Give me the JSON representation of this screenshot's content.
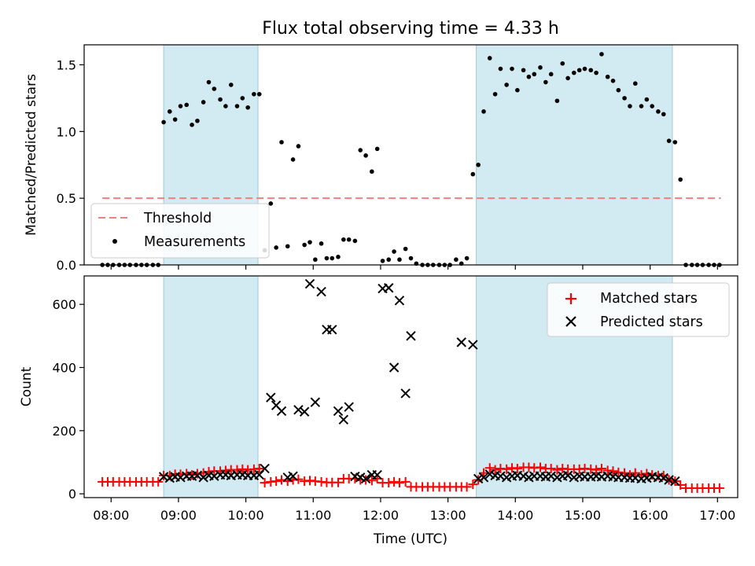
{
  "chart_data": {
    "title": "Flux total observing time = 4.33 h",
    "xlabel": "Time (UTC)",
    "xlim": [
      7.6,
      17.3
    ],
    "x_ticks": [
      8,
      9,
      10,
      11,
      12,
      13,
      14,
      15,
      16,
      17
    ],
    "x_tick_labels": [
      "08:00",
      "09:00",
      "10:00",
      "11:00",
      "12:00",
      "13:00",
      "14:00",
      "15:00",
      "16:00",
      "17:00"
    ],
    "observing_intervals": [
      [
        8.78,
        10.18
      ],
      [
        13.42,
        16.33
      ]
    ],
    "band_color": "#add8e6",
    "panels": [
      {
        "type": "scatter",
        "ylabel": "Matched/Predicted stars",
        "ylim": [
          0,
          1.65
        ],
        "y_ticks": [
          0.0,
          0.5,
          1.0,
          1.5
        ],
        "y_tick_labels": [
          "0.0",
          "0.5",
          "1.0",
          "1.5"
        ],
        "legend_position": "lower-left",
        "threshold": {
          "name": "Threshold",
          "value": 0.5,
          "x_range": [
            7.87,
            17.05
          ],
          "color": "#f08080"
        },
        "measurements": {
          "name": "Measurements",
          "color": "#000000",
          "x": [
            7.87,
            7.95,
            8.03,
            8.12,
            8.2,
            8.28,
            8.37,
            8.45,
            8.53,
            8.62,
            8.7,
            8.78,
            8.87,
            8.95,
            9.03,
            9.12,
            9.2,
            9.28,
            9.37,
            9.45,
            9.53,
            9.62,
            9.7,
            9.78,
            9.87,
            9.95,
            10.03,
            10.12,
            10.2,
            10.28,
            10.37,
            10.45,
            10.53,
            10.62,
            10.7,
            10.78,
            10.87,
            10.95,
            11.03,
            11.12,
            11.2,
            11.28,
            11.37,
            11.45,
            11.53,
            11.62,
            11.7,
            11.78,
            11.87,
            11.95,
            12.03,
            12.12,
            12.2,
            12.28,
            12.37,
            12.45,
            12.53,
            12.62,
            12.7,
            12.78,
            12.87,
            12.95,
            13.03,
            13.12,
            13.2,
            13.28,
            13.37,
            13.45,
            13.53,
            13.62,
            13.7,
            13.78,
            13.87,
            13.95,
            14.03,
            14.12,
            14.2,
            14.28,
            14.37,
            14.45,
            14.53,
            14.62,
            14.7,
            14.78,
            14.87,
            14.95,
            15.03,
            15.12,
            15.2,
            15.28,
            15.37,
            15.45,
            15.53,
            15.62,
            15.7,
            15.78,
            15.87,
            15.95,
            16.03,
            16.12,
            16.2,
            16.28,
            16.37,
            16.45,
            16.53,
            16.62,
            16.7,
            16.78,
            16.87,
            16.95,
            17.03
          ],
          "y": [
            0,
            0,
            0,
            0,
            0,
            0,
            0,
            0,
            0,
            0,
            0,
            1.07,
            1.15,
            1.09,
            1.19,
            1.2,
            1.05,
            1.08,
            1.22,
            1.37,
            1.32,
            1.24,
            1.19,
            1.35,
            1.19,
            1.25,
            1.18,
            1.28,
            1.28,
            0.11,
            0.46,
            0.13,
            0.92,
            0.14,
            0.79,
            0.89,
            0.15,
            0.17,
            0.04,
            0.16,
            0.05,
            0.05,
            0.06,
            0.19,
            0.19,
            0.18,
            0.86,
            0.82,
            0.7,
            0.87,
            0.03,
            0.04,
            0.1,
            0.04,
            0.12,
            0.05,
            0.01,
            0,
            0,
            0,
            0,
            0,
            0,
            0.04,
            0.01,
            0.05,
            0.68,
            0.75,
            1.15,
            1.55,
            1.28,
            1.47,
            1.35,
            1.47,
            1.31,
            1.46,
            1.41,
            1.43,
            1.48,
            1.37,
            1.43,
            1.23,
            1.51,
            1.4,
            1.44,
            1.46,
            1.47,
            1.46,
            1.44,
            1.58,
            1.41,
            1.38,
            1.31,
            1.25,
            1.19,
            1.36,
            1.19,
            1.24,
            1.19,
            1.15,
            1.13,
            0.93,
            0.92,
            0.64,
            0,
            0,
            0,
            0,
            0,
            0,
            0
          ]
        }
      },
      {
        "type": "scatter",
        "ylabel": "Count",
        "ylim": [
          -12,
          690
        ],
        "y_ticks": [
          0,
          200,
          400,
          600
        ],
        "y_tick_labels": [
          "0",
          "200",
          "400",
          "600"
        ],
        "legend_position": "upper-right",
        "matched": {
          "name": "Matched stars",
          "color": "#ff0000",
          "x": [
            7.87,
            7.95,
            8.03,
            8.12,
            8.2,
            8.28,
            8.37,
            8.45,
            8.53,
            8.62,
            8.7,
            8.78,
            8.87,
            8.95,
            9.03,
            9.12,
            9.2,
            9.28,
            9.37,
            9.45,
            9.53,
            9.62,
            9.7,
            9.78,
            9.87,
            9.95,
            10.03,
            10.12,
            10.2,
            10.28,
            10.37,
            10.45,
            10.53,
            10.62,
            10.7,
            10.78,
            10.87,
            10.95,
            11.03,
            11.12,
            11.2,
            11.28,
            11.37,
            11.45,
            11.53,
            11.62,
            11.7,
            11.78,
            11.87,
            11.95,
            12.03,
            12.12,
            12.2,
            12.28,
            12.37,
            12.45,
            12.53,
            12.62,
            12.7,
            12.78,
            12.87,
            12.95,
            13.03,
            13.12,
            13.2,
            13.28,
            13.37,
            13.45,
            13.53,
            13.62,
            13.7,
            13.78,
            13.87,
            13.95,
            14.03,
            14.12,
            14.2,
            14.28,
            14.37,
            14.45,
            14.53,
            14.62,
            14.7,
            14.78,
            14.87,
            14.95,
            15.03,
            15.12,
            15.2,
            15.28,
            15.37,
            15.45,
            15.53,
            15.62,
            15.7,
            15.78,
            15.87,
            15.95,
            16.03,
            16.12,
            16.2,
            16.28,
            16.37,
            16.45,
            16.53,
            16.62,
            16.7,
            16.78,
            16.87,
            16.95,
            17.03
          ],
          "y": [
            38,
            38,
            38,
            38,
            38,
            38,
            38,
            38,
            38,
            38,
            38,
            58,
            58,
            62,
            62,
            64,
            60,
            64,
            66,
            70,
            72,
            72,
            74,
            76,
            76,
            78,
            76,
            78,
            80,
            35,
            38,
            40,
            44,
            40,
            44,
            46,
            40,
            42,
            40,
            38,
            36,
            36,
            36,
            48,
            48,
            48,
            44,
            44,
            42,
            48,
            35,
            35,
            38,
            35,
            38,
            22,
            22,
            22,
            22,
            22,
            22,
            22,
            22,
            22,
            22,
            22,
            30,
            44,
            66,
            82,
            76,
            80,
            78,
            82,
            80,
            84,
            84,
            82,
            84,
            80,
            80,
            76,
            80,
            78,
            78,
            78,
            80,
            78,
            76,
            80,
            74,
            72,
            68,
            66,
            60,
            66,
            60,
            64,
            60,
            58,
            58,
            44,
            40,
            28,
            18,
            18,
            18,
            18,
            18,
            18,
            18
          ]
        },
        "predicted": {
          "name": "Predicted stars",
          "color": "#000000",
          "x": [
            8.78,
            8.87,
            8.95,
            9.03,
            9.12,
            9.2,
            9.28,
            9.37,
            9.45,
            9.53,
            9.62,
            9.7,
            9.78,
            9.87,
            9.95,
            10.03,
            10.12,
            10.2,
            10.28,
            10.37,
            10.45,
            10.53,
            10.62,
            10.7,
            10.78,
            10.87,
            10.95,
            11.03,
            11.12,
            11.2,
            11.28,
            11.37,
            11.45,
            11.53,
            11.62,
            11.7,
            11.78,
            11.87,
            11.95,
            12.03,
            12.12,
            12.2,
            12.28,
            12.37,
            12.45,
            13.2,
            13.37,
            13.45,
            13.53,
            13.62,
            13.7,
            13.78,
            13.87,
            13.95,
            14.03,
            14.12,
            14.2,
            14.28,
            14.37,
            14.45,
            14.53,
            14.62,
            14.7,
            14.78,
            14.87,
            14.95,
            15.03,
            15.12,
            15.2,
            15.28,
            15.37,
            15.45,
            15.53,
            15.62,
            15.7,
            15.78,
            15.87,
            15.95,
            16.03,
            16.12,
            16.2,
            16.28,
            16.37
          ],
          "y": [
            54,
            50,
            54,
            52,
            56,
            56,
            58,
            52,
            58,
            56,
            60,
            60,
            58,
            60,
            60,
            58,
            58,
            60,
            80,
            305,
            280,
            262,
            52,
            56,
            266,
            260,
            665,
            290,
            640,
            520,
            520,
            262,
            235,
            275,
            55,
            52,
            48,
            60,
            60,
            650,
            652,
            400,
            612,
            318,
            500,
            480,
            472,
            48,
            52,
            62,
            58,
            56,
            52,
            56,
            58,
            56,
            52,
            56,
            56,
            54,
            56,
            52,
            56,
            58,
            52,
            56,
            54,
            54,
            56,
            54,
            56,
            54,
            52,
            52,
            50,
            50,
            48,
            50,
            54,
            52,
            50,
            44,
            40
          ]
        }
      }
    ]
  }
}
